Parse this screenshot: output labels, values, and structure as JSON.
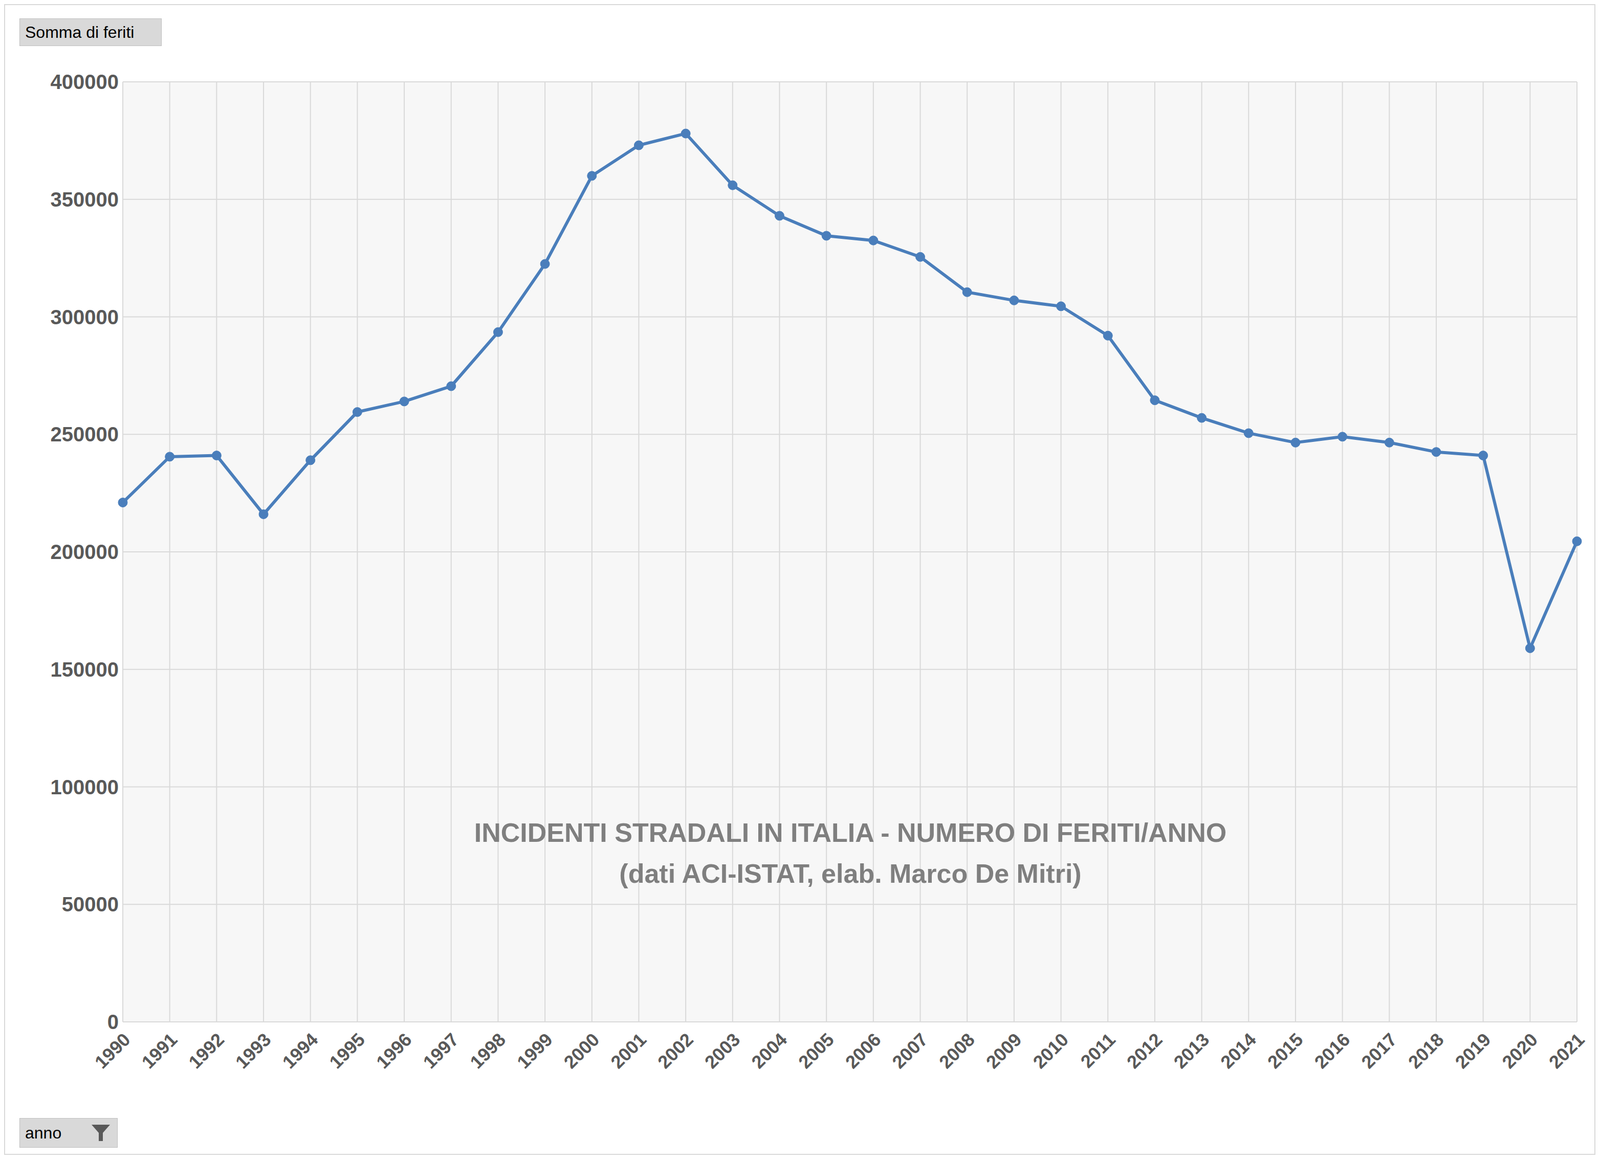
{
  "chart_data": {
    "type": "line",
    "title": "INCIDENTI STRADALI IN ITALIA - NUMERO DI FERITI/ANNO",
    "subtitle": "(dati ACI-ISTAT, elab. Marco De Mitri)",
    "y_label": "Somma di feriti",
    "x_label": "anno",
    "categories": [
      "1990",
      "1991",
      "1992",
      "1993",
      "1994",
      "1995",
      "1996",
      "1997",
      "1998",
      "1999",
      "2000",
      "2001",
      "2002",
      "2003",
      "2004",
      "2005",
      "2006",
      "2007",
      "2008",
      "2009",
      "2010",
      "2011",
      "2012",
      "2013",
      "2014",
      "2015",
      "2016",
      "2017",
      "2018",
      "2019",
      "2020",
      "2021"
    ],
    "values": [
      221000,
      240500,
      241000,
      216000,
      239000,
      259500,
      264000,
      270500,
      293500,
      322500,
      360000,
      373000,
      378000,
      356000,
      343000,
      334500,
      332500,
      325500,
      310500,
      307000,
      304500,
      292000,
      264500,
      257000,
      250500,
      246500,
      249000,
      246500,
      242500,
      241000,
      159000,
      204500
    ],
    "color": "#4a7ebb",
    "marker": "circle",
    "ylim": [
      0,
      400000
    ],
    "yticks": [
      0,
      50000,
      100000,
      150000,
      200000,
      250000,
      300000,
      350000,
      400000
    ],
    "grid": true
  }
}
